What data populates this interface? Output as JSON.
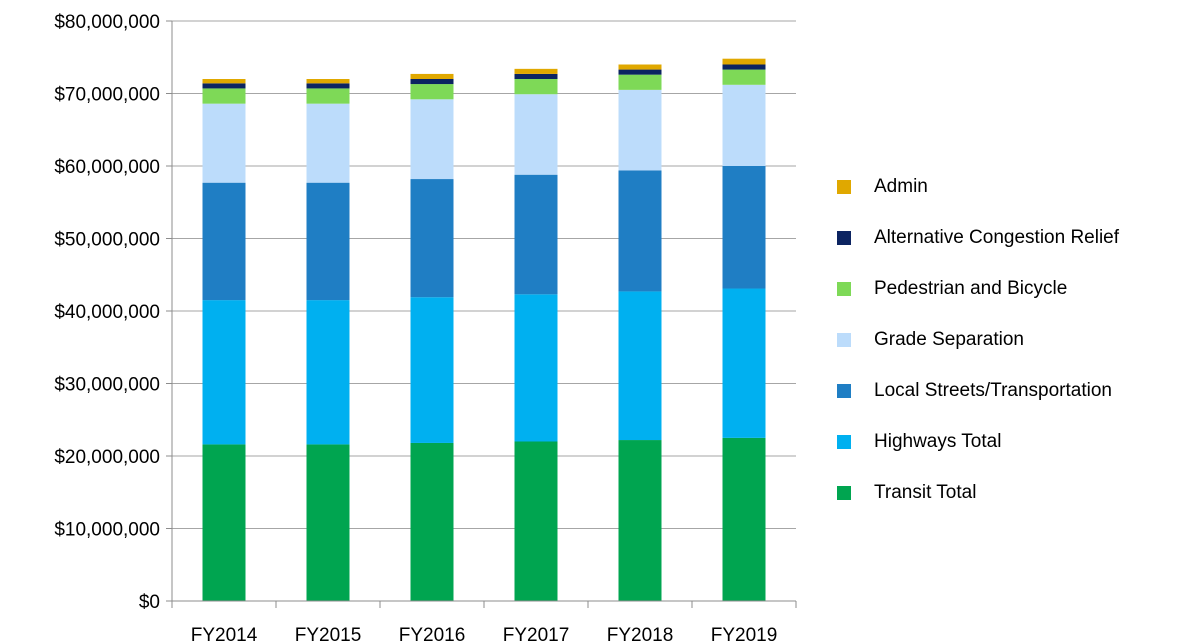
{
  "chart_data": {
    "type": "bar",
    "stacked": true,
    "title": "",
    "xlabel": "",
    "ylabel": "",
    "categories": [
      "FY2014",
      "FY2015",
      "FY2016",
      "FY2017",
      "FY2018",
      "FY2019"
    ],
    "ylim": [
      0,
      80000000
    ],
    "yticks": [
      0,
      10000000,
      20000000,
      30000000,
      40000000,
      50000000,
      60000000,
      70000000,
      80000000
    ],
    "ytick_labels": [
      "$0",
      "$10,000,000",
      "$20,000,000",
      "$30,000,000",
      "$40,000,000",
      "$50,000,000",
      "$60,000,000",
      "$70,000,000",
      "$80,000,000"
    ],
    "grid": true,
    "legend_position": "right",
    "series": [
      {
        "name": "Transit Total",
        "color": "#00a550",
        "values": [
          21600000,
          21600000,
          21800000,
          22000000,
          22200000,
          22500000
        ]
      },
      {
        "name": "Highways Total",
        "color": "#00b0f0",
        "values": [
          19900000,
          19900000,
          20100000,
          20300000,
          20500000,
          20600000
        ]
      },
      {
        "name": "Local Streets/Transportation",
        "color": "#1f7ec4",
        "values": [
          16200000,
          16200000,
          16300000,
          16500000,
          16700000,
          16900000
        ]
      },
      {
        "name": "Grade Separation",
        "color": "#bcdcfb",
        "values": [
          10900000,
          10900000,
          11000000,
          11100000,
          11100000,
          11200000
        ]
      },
      {
        "name": "Pedestrian and Bicycle",
        "color": "#7ed957",
        "values": [
          2100000,
          2100000,
          2100000,
          2100000,
          2100000,
          2100000
        ]
      },
      {
        "name": "Alternative Congestion Relief",
        "color": "#0c2461",
        "values": [
          700000,
          700000,
          700000,
          700000,
          700000,
          700000
        ]
      },
      {
        "name": "Admin",
        "color": "#e0a800",
        "values": [
          600000,
          600000,
          700000,
          700000,
          700000,
          800000
        ]
      }
    ]
  }
}
